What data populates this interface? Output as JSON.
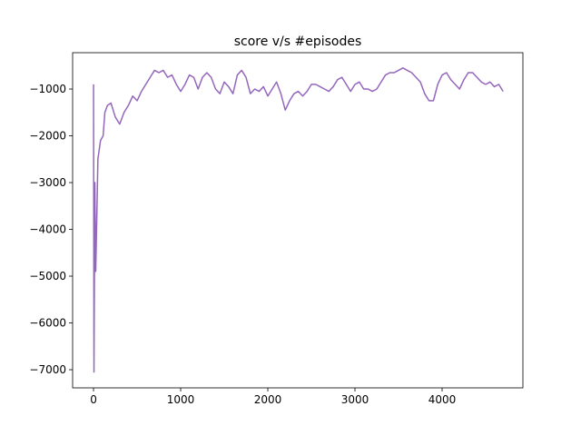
{
  "chart_data": {
    "type": "line",
    "title": "score v/s #episodes",
    "x": [
      0,
      5,
      15,
      25,
      40,
      50,
      80,
      110,
      130,
      160,
      200,
      250,
      300,
      350,
      400,
      450,
      500,
      550,
      600,
      650,
      700,
      750,
      800,
      850,
      900,
      950,
      1000,
      1050,
      1100,
      1150,
      1200,
      1250,
      1300,
      1350,
      1400,
      1450,
      1500,
      1550,
      1600,
      1650,
      1700,
      1750,
      1800,
      1850,
      1900,
      1950,
      2000,
      2050,
      2100,
      2150,
      2200,
      2250,
      2300,
      2350,
      2400,
      2450,
      2500,
      2550,
      2600,
      2650,
      2700,
      2750,
      2800,
      2850,
      2900,
      2950,
      3000,
      3050,
      3100,
      3150,
      3200,
      3250,
      3300,
      3350,
      3400,
      3450,
      3500,
      3550,
      3600,
      3650,
      3700,
      3750,
      3800,
      3850,
      3900,
      3950,
      4000,
      4050,
      4100,
      4150,
      4200,
      4250,
      4300,
      4350,
      4400,
      4450,
      4500,
      4550,
      4600,
      4650,
      4700
    ],
    "series": [
      {
        "color": "#9467bd",
        "values": [
          -900,
          -7050,
          -3000,
          -4900,
          -3500,
          -2500,
          -2100,
          -2000,
          -1500,
          -1350,
          -1300,
          -1600,
          -1750,
          -1500,
          -1350,
          -1150,
          -1250,
          -1050,
          -900,
          -750,
          -600,
          -650,
          -600,
          -750,
          -700,
          -900,
          -1050,
          -900,
          -700,
          -750,
          -1000,
          -750,
          -650,
          -750,
          -1000,
          -1100,
          -850,
          -950,
          -1100,
          -700,
          -600,
          -750,
          -1100,
          -1000,
          -1050,
          -950,
          -1150,
          -1000,
          -850,
          -1100,
          -1450,
          -1250,
          -1100,
          -1050,
          -1150,
          -1050,
          -900,
          -900,
          -950,
          -1000,
          -1050,
          -950,
          -800,
          -750,
          -900,
          -1050,
          -900,
          -850,
          -1000,
          -1000,
          -1050,
          -1000,
          -850,
          -700,
          -650,
          -650,
          -600,
          -550,
          -600,
          -650,
          -750,
          -850,
          -1100,
          -1250,
          -1250,
          -900,
          -700,
          -650,
          -800,
          -900,
          -1000,
          -800,
          -650,
          -650,
          -750,
          -850,
          -900,
          -850,
          -950,
          -900,
          -1050
        ]
      }
    ],
    "xlim": [
      -240,
      4927
    ],
    "ylim": [
      -7388,
      -223
    ],
    "xticks": [
      0,
      1000,
      2000,
      3000,
      4000
    ],
    "yticks": [
      {
        "value": -7000,
        "label": "−7000"
      },
      {
        "value": -6000,
        "label": "−6000"
      },
      {
        "value": -5000,
        "label": "−5000"
      },
      {
        "value": -4000,
        "label": "−4000"
      },
      {
        "value": -3000,
        "label": "−3000"
      },
      {
        "value": -2000,
        "label": "−2000"
      },
      {
        "value": -1000,
        "label": "−1000"
      }
    ],
    "grid": false
  }
}
